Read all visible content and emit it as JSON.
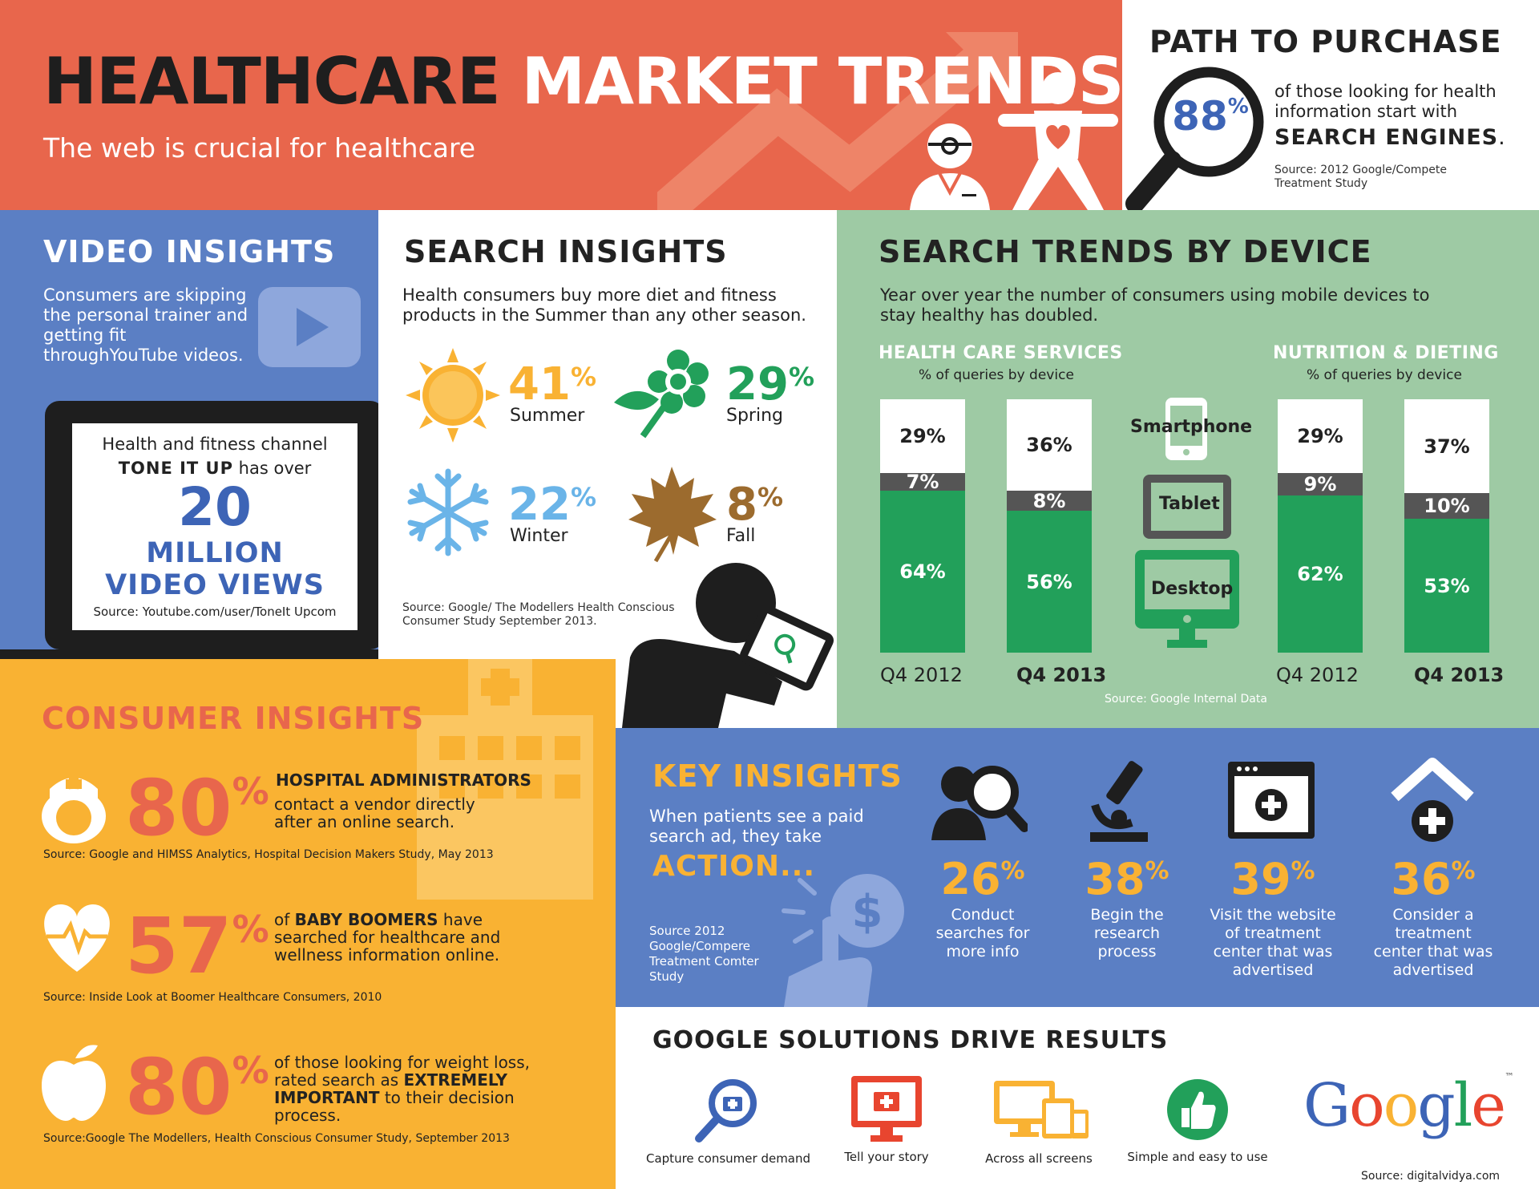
{
  "header": {
    "title_dark": "HEALTHCARE",
    "title_light": "MARKET TRENDS",
    "subtitle": "The web is crucial for healthcare"
  },
  "path_to_purchase": {
    "title": "PATH TO PURCHASE",
    "percent": "88",
    "percent_sign": "%",
    "text": "of those looking for health information start with",
    "strong": "SEARCH ENGINES",
    "strong_suffix": ".",
    "source": "Source: 2012 Google/Compete Treatment Study"
  },
  "video_insights": {
    "title": "VIDEO INSIGHTS",
    "text": "Consumers are skipping the personal trainer and getting fit throughYouTube videos.",
    "screen_line1": "Health and fitness channel",
    "screen_line2_bold": "TONE IT UP",
    "screen_line2_rest": " has over",
    "number": "20",
    "million": "MILLION",
    "views": "VIDEO VIEWS",
    "source": "Source: Youtube.com/user/ToneIt Upcom"
  },
  "search_insights": {
    "title": "SEARCH INSIGHTS",
    "text": "Health consumers buy more diet and fitness products in the Summer than any other season.",
    "seasons": [
      {
        "value": "41",
        "unit": "%",
        "label": "Summer",
        "color": "#f9b233",
        "icon": "sun-icon"
      },
      {
        "value": "29",
        "unit": "%",
        "label": "Spring",
        "color": "#22a05a",
        "icon": "flower-icon"
      },
      {
        "value": "22",
        "unit": "%",
        "label": "Winter",
        "color": "#6ab4e8",
        "icon": "snowflake-icon"
      },
      {
        "value": "8",
        "unit": "%",
        "label": "Fall",
        "color": "#9c6b2e",
        "icon": "maple-leaf-icon"
      }
    ],
    "source": "Source: Google/ The Modellers Health Conscious Consumer Study September 2013."
  },
  "search_trends": {
    "title": "SEARCH TRENDS BY DEVICE",
    "text": "Year over year the number of consumers using mobile devices to stay healthy has doubled.",
    "source": "Source: Google Internal Data",
    "devices": [
      "Smartphone",
      "Tablet",
      "Desktop"
    ]
  },
  "chart_data": [
    {
      "type": "bar",
      "stacked": true,
      "title": "HEALTH CARE SERVICES",
      "subtitle": "% of queries by device",
      "categories": [
        "Q4 2012",
        "Q4 2013"
      ],
      "series": [
        {
          "name": "Smartphone",
          "values": [
            29,
            36
          ],
          "labels": [
            "29%",
            "36%"
          ],
          "color": "#ffffff"
        },
        {
          "name": "Tablet",
          "values": [
            7,
            8
          ],
          "labels": [
            "7%",
            "8%"
          ],
          "color": "#555555"
        },
        {
          "name": "Desktop",
          "values": [
            64,
            56
          ],
          "labels": [
            "64%",
            "56%"
          ],
          "color": "#22a05a"
        }
      ],
      "ylim": [
        0,
        100
      ]
    },
    {
      "type": "bar",
      "stacked": true,
      "title": "NUTRITION & DIETING",
      "subtitle": "% of queries by device",
      "categories": [
        "Q4 2012",
        "Q4 2013"
      ],
      "series": [
        {
          "name": "Smartphone",
          "values": [
            29,
            37
          ],
          "labels": [
            "29%",
            "37%"
          ],
          "color": "#ffffff"
        },
        {
          "name": "Tablet",
          "values": [
            9,
            10
          ],
          "labels": [
            "9%",
            "10%"
          ],
          "color": "#555555"
        },
        {
          "name": "Desktop",
          "values": [
            62,
            53
          ],
          "labels": [
            "62%",
            "53%"
          ],
          "color": "#22a05a"
        }
      ],
      "ylim": [
        0,
        100
      ]
    }
  ],
  "consumer_insights": {
    "title": "CONSUMER INSIGHTS",
    "items": [
      {
        "value": "80",
        "unit": "%",
        "bold": "HOSPITAL ADMINISTRATORS",
        "text": "contact a vendor directly after an online search.",
        "source": "Source: Google and HIMSS Analytics, Hospital Decision Makers Study, May 2013",
        "icon": "nurse-icon"
      },
      {
        "value": "57",
        "unit": "%",
        "pre": "of ",
        "bold": "BABY BOOMERS",
        "text": " have searched for healthcare and wellness information online.",
        "source": "Source: Inside Look at Boomer Healthcare Consumers, 2010",
        "icon": "heartbeat-icon"
      },
      {
        "value": "80",
        "unit": "%",
        "pre": "of those looking for weight loss, rated search as ",
        "bold": "EXTREMELY IMPORTANT",
        "text": " to their decision process.",
        "source": "Source:Google The Modellers, Health Conscious Consumer Study, September 2013",
        "icon": "apple-icon"
      }
    ]
  },
  "key_insights": {
    "title": "KEY INSIGHTS",
    "text": "When patients see a paid search ad, they take",
    "action": "ACTION...",
    "source": "Source 2012 Google/Compere Treatment Comter Study",
    "items": [
      {
        "value": "26",
        "unit": "%",
        "label": "Conduct searches for more info",
        "icon": "people-search-icon"
      },
      {
        "value": "38",
        "unit": "%",
        "label": "Begin the research process",
        "icon": "microscope-icon"
      },
      {
        "value": "39",
        "unit": "%",
        "label": "Visit the website of treatment center that was advertised",
        "icon": "website-medical-icon"
      },
      {
        "value": "36",
        "unit": "%",
        "label": "Consider a treatment center that was advertised",
        "icon": "house-medical-icon"
      }
    ]
  },
  "google_solutions": {
    "title": "GOOGLE SOLUTIONS DRIVE RESULTS",
    "items": [
      {
        "label": "Capture consumer demand",
        "icon": "magnifier-medkit-icon"
      },
      {
        "label": "Tell your story",
        "icon": "monitor-medkit-icon"
      },
      {
        "label": "Across all screens",
        "icon": "screens-icon"
      },
      {
        "label": "Simple and easy to use",
        "icon": "thumbs-up-icon"
      }
    ],
    "logo_text": "Google",
    "logo_tm": "™",
    "source": "Source: digitalvidya.com"
  },
  "colors": {
    "coral": "#e8664c",
    "blue": "#5b7fc4",
    "green_panel": "#9ecaa4",
    "green_bar": "#22a05a",
    "orange_panel": "#f9b233",
    "dark": "#1e1e1e"
  }
}
